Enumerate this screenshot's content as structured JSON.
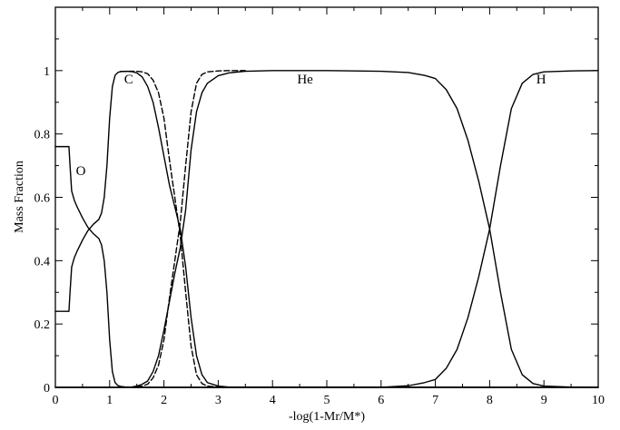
{
  "chart_data": {
    "type": "line",
    "title": "",
    "xlabel": "-log(1-Mr/M*)",
    "ylabel": "Mass Fraction",
    "xlim": [
      0,
      10
    ],
    "ylim": [
      0,
      1.2
    ],
    "x_ticks": [
      0,
      1,
      2,
      3,
      4,
      5,
      6,
      7,
      8,
      9,
      10
    ],
    "x_tick_labels": [
      "0",
      "1",
      "2",
      "3",
      "4",
      "5",
      "6",
      "7",
      "8",
      "9",
      "10"
    ],
    "y_ticks": [
      0,
      0.2,
      0.4,
      0.6,
      0.8,
      1
    ],
    "y_tick_labels": [
      "0",
      "0.2",
      "0.4",
      "0.6",
      "0.8",
      "1"
    ],
    "grid": false,
    "legend": "none",
    "annotations": [
      {
        "text": "O",
        "x": 0.47,
        "y": 0.67
      },
      {
        "text": "C",
        "x": 1.35,
        "y": 0.96
      },
      {
        "text": "He",
        "x": 4.6,
        "y": 0.96
      },
      {
        "text": "H",
        "x": 8.95,
        "y": 0.96
      }
    ],
    "series": [
      {
        "style": "solid",
        "x": [
          0,
          0.25,
          0.27,
          0.3,
          0.35,
          0.4,
          0.5,
          0.6,
          0.7,
          0.8,
          0.85,
          0.9,
          0.95,
          1.0,
          1.05,
          1.1,
          1.15,
          1.2,
          1.3,
          1.5,
          10
        ],
        "y": [
          0.76,
          0.76,
          0.7,
          0.62,
          0.59,
          0.57,
          0.535,
          0.505,
          0.485,
          0.47,
          0.45,
          0.4,
          0.3,
          0.15,
          0.05,
          0.015,
          0.006,
          0.003,
          0.001,
          0,
          0
        ]
      },
      {
        "style": "solid",
        "x": [
          0,
          0.25,
          0.27,
          0.3,
          0.35,
          0.4,
          0.5,
          0.6,
          0.7,
          0.8,
          0.85,
          0.9,
          0.95,
          1.0,
          1.05,
          1.1,
          1.15,
          1.2,
          1.3,
          1.4,
          1.5,
          1.6,
          1.7,
          1.8,
          1.9,
          2.0,
          2.1,
          2.2,
          2.3,
          2.4,
          2.5,
          2.6,
          2.7,
          2.8,
          3.0,
          3.2,
          10
        ],
        "y": [
          0.24,
          0.24,
          0.3,
          0.38,
          0.41,
          0.43,
          0.465,
          0.495,
          0.515,
          0.53,
          0.55,
          0.6,
          0.7,
          0.85,
          0.95,
          0.985,
          0.994,
          0.997,
          0.998,
          0.997,
          0.993,
          0.98,
          0.95,
          0.9,
          0.82,
          0.73,
          0.64,
          0.57,
          0.5,
          0.38,
          0.22,
          0.1,
          0.04,
          0.015,
          0.004,
          0.001,
          0
        ]
      },
      {
        "style": "solid",
        "x": [
          0,
          1.2,
          1.4,
          1.5,
          1.6,
          1.7,
          1.8,
          1.9,
          2.0,
          2.1,
          2.2,
          2.3,
          2.4,
          2.5,
          2.6,
          2.7,
          2.8,
          3.0,
          3.2,
          3.5,
          4.0,
          5.0,
          6.0,
          6.5,
          6.8,
          7.0,
          7.2,
          7.4,
          7.6,
          7.8,
          8.0,
          8.2,
          8.4,
          8.6,
          8.8,
          9.0,
          9.5,
          10
        ],
        "y": [
          0,
          0,
          0.001,
          0.004,
          0.01,
          0.02,
          0.05,
          0.1,
          0.18,
          0.27,
          0.36,
          0.44,
          0.56,
          0.75,
          0.87,
          0.93,
          0.96,
          0.984,
          0.993,
          0.998,
          1.0,
          1.0,
          0.998,
          0.994,
          0.985,
          0.975,
          0.94,
          0.88,
          0.78,
          0.65,
          0.5,
          0.3,
          0.12,
          0.04,
          0.012,
          0.004,
          0.001,
          0
        ]
      },
      {
        "style": "solid",
        "x": [
          0,
          6.0,
          6.5,
          6.8,
          7.0,
          7.2,
          7.4,
          7.6,
          7.8,
          8.0,
          8.2,
          8.4,
          8.6,
          8.8,
          9.0,
          9.5,
          10
        ],
        "y": [
          0,
          0,
          0.005,
          0.015,
          0.025,
          0.06,
          0.12,
          0.22,
          0.35,
          0.5,
          0.7,
          0.88,
          0.96,
          0.988,
          0.996,
          0.999,
          1.0
        ]
      },
      {
        "style": "dashed",
        "x": [
          1.2,
          1.4,
          1.5,
          1.6,
          1.7,
          1.8,
          1.9,
          2.0,
          2.1,
          2.2,
          2.3,
          2.4,
          2.5,
          2.6,
          2.7,
          2.8,
          3.0,
          3.2
        ],
        "y": [
          0.997,
          0.998,
          0.998,
          0.996,
          0.99,
          0.97,
          0.93,
          0.85,
          0.72,
          0.6,
          0.48,
          0.3,
          0.13,
          0.04,
          0.012,
          0.004,
          0.001,
          0
        ]
      },
      {
        "style": "dashed",
        "x": [
          1.5,
          1.6,
          1.7,
          1.8,
          1.9,
          2.0,
          2.1,
          2.2,
          2.3,
          2.4,
          2.5,
          2.6,
          2.7,
          2.8,
          3.0,
          3.2,
          3.5
        ],
        "y": [
          0.002,
          0.004,
          0.01,
          0.03,
          0.07,
          0.15,
          0.28,
          0.4,
          0.52,
          0.7,
          0.87,
          0.96,
          0.988,
          0.996,
          0.999,
          1.0,
          1.0
        ]
      }
    ]
  }
}
